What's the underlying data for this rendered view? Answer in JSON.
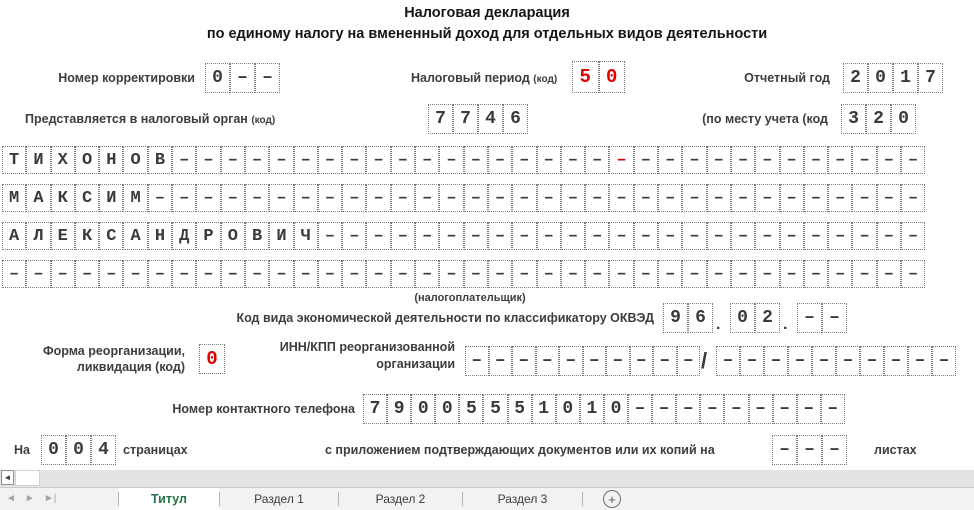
{
  "title": {
    "line1": "Налоговая декларация",
    "line2": "по единому налогу на вмененный доход для отдельных видов деятельности"
  },
  "colors": {
    "accent_green": "#217346",
    "value_red": "#e00000"
  },
  "fields": {
    "correction": {
      "label": "Номер корректировки",
      "cells": {
        "text": "0––"
      }
    },
    "tax_period": {
      "label": "Налоговый период",
      "label_small": "(код)",
      "cells": {
        "text": "50",
        "all_red": true
      }
    },
    "year": {
      "label": "Отчетный год",
      "cells": {
        "text": "2017"
      }
    },
    "tax_authority": {
      "label": "Представляется в налоговый орган",
      "label_small": "(код)",
      "cells": {
        "text": "7746"
      }
    },
    "place": {
      "label": "(по месту учета (код",
      "cells": {
        "text": "320"
      }
    },
    "taxpayer_caption": "(налогоплательщик)",
    "okved": {
      "label": "Код вида экономической деятельности по классификатору ОКВЭД",
      "part1": {
        "text": "96"
      },
      "part2": {
        "text": "02"
      },
      "part3": {
        "text": "––"
      },
      "dot": "."
    },
    "reorg": {
      "label_line1": "Форма реорганизации,",
      "label_line2": "ликвидация (код)",
      "code": {
        "text": "0",
        "all_red": true
      },
      "innkpp_label_line1": "ИНН/КПП реорганизованной",
      "innkpp_label_line2": "организации",
      "inn": {
        "text": "––––––––––"
      },
      "slash": "/",
      "kpp": {
        "text": "––––––––––"
      }
    },
    "phone": {
      "label": "Номер контактного телефона",
      "cells": {
        "text": "79005551010–––––––––"
      }
    },
    "pages": {
      "prefix": "На",
      "count": {
        "text": "004"
      },
      "suffix": "страницах",
      "attach_label": "с приложением подтверждающих документов или их копий на",
      "attach_cells": {
        "text": "–––"
      },
      "attach_suffix": "листах"
    }
  },
  "name_block": {
    "rows": [
      {
        "text": "ТИХОНОВ–––––––––––––––––––––––––––––––",
        "red": [
          25
        ]
      },
      {
        "text": "МАКСИМ––––––––––––––––––––––––––––––––"
      },
      {
        "text": "АЛЕКСАНДРОВИЧ–––––––––––––––––––––––––"
      },
      {
        "text": "––––––––––––––––––––––––––––––––––––––"
      }
    ]
  },
  "scrollbar": {
    "left_arrow": "◄"
  },
  "sheet_bar": {
    "nav": {
      "first": "◄",
      "prev": "►",
      "next": "►|"
    },
    "tabs": [
      {
        "label": "Титул"
      },
      {
        "label": "Раздел 1"
      },
      {
        "label": "Раздел 2"
      },
      {
        "label": "Раздел 3"
      }
    ],
    "add_sheet": "+"
  }
}
